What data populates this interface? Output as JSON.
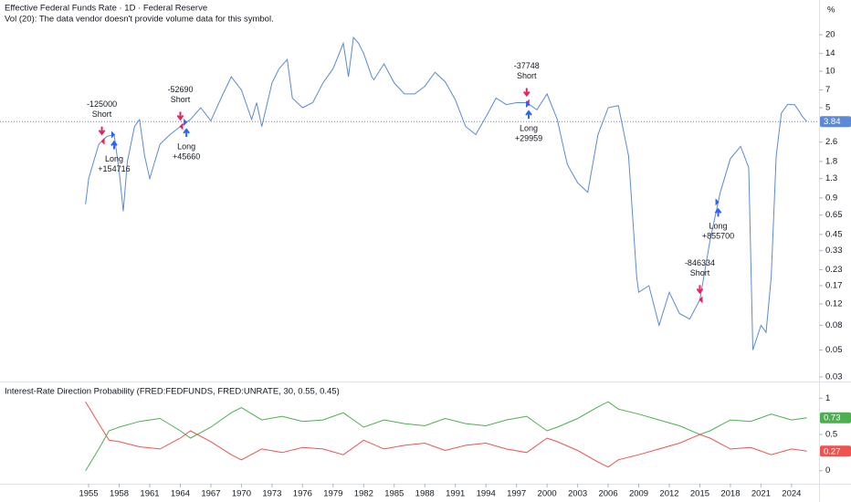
{
  "chart_data": [
    {
      "type": "line",
      "title": "Effective Federal Funds Rate · 1D · Federal Reserve",
      "subtitle": "Vol (20): The data vendor doesn't provide volume data for this symbol.",
      "y_unit": "%",
      "log_scale": true,
      "color": "#5b8ad6",
      "x": [
        1954.7,
        1955.0,
        1955.5,
        1956,
        1956.8,
        1957.5,
        1958.0,
        1958.4,
        1958.8,
        1959.5,
        1960,
        1960.5,
        1961,
        1961.5,
        1962,
        1963,
        1964,
        1965,
        1966,
        1967,
        1968,
        1969,
        1970,
        1971,
        1971.5,
        1972,
        1973,
        1973.7,
        1974.5,
        1975,
        1976,
        1977,
        1978,
        1979,
        1980,
        1980.5,
        1981,
        1981.5,
        1982,
        1982.8,
        1983,
        1984,
        1985,
        1986,
        1987,
        1988,
        1989,
        1990,
        1991,
        1992,
        1993,
        1994,
        1995,
        1996,
        1997,
        1998,
        1999,
        2000,
        2001,
        2001.8,
        2002,
        2003,
        2004,
        2005,
        2006,
        2007,
        2008,
        2008.8,
        2009,
        2010,
        2011,
        2012,
        2013,
        2014,
        2015,
        2016,
        2017,
        2018,
        2019,
        2019.8,
        2020.2,
        2021,
        2021.5,
        2022,
        2022.5,
        2023,
        2023.6,
        2024.3,
        2024.8,
        2025.0,
        2025.5
      ],
      "values": [
        0.8,
        1.3,
        1.8,
        2.5,
        2.9,
        3.0,
        1.5,
        0.7,
        1.8,
        3.5,
        4.0,
        2.0,
        1.3,
        1.8,
        2.5,
        3.0,
        3.5,
        4.0,
        5.0,
        3.9,
        6.0,
        9.0,
        7.0,
        4.0,
        5.5,
        3.5,
        8.0,
        10.5,
        12.5,
        6.0,
        5.0,
        5.5,
        8.0,
        10.5,
        17,
        9,
        19,
        17,
        14,
        9,
        8.5,
        11.5,
        8,
        6.5,
        6.5,
        7.5,
        9.8,
        8.2,
        5.8,
        3.5,
        3.0,
        4.2,
        6.0,
        5.3,
        5.5,
        5.5,
        4.8,
        6.5,
        4.0,
        2.0,
        1.7,
        1.2,
        1.0,
        3.0,
        5.0,
        5.2,
        2.0,
        0.2,
        0.15,
        0.17,
        0.08,
        0.15,
        0.1,
        0.09,
        0.13,
        0.4,
        1.0,
        1.9,
        2.4,
        1.6,
        0.05,
        0.08,
        0.07,
        0.2,
        2.0,
        4.5,
        5.3,
        5.3,
        4.6,
        4.3,
        3.84
      ],
      "xlim": [
        1946.3,
        2026.7
      ],
      "ylim": [
        0.0275,
        38.7
      ],
      "yticks": [
        20,
        14,
        10,
        7,
        5,
        2.6,
        1.8,
        1.3,
        0.9,
        0.65,
        0.45,
        0.33,
        0.23,
        0.17,
        0.12,
        0.08,
        0.05,
        0.03
      ],
      "annotations": [
        {
          "x": 1956.3,
          "side": "short",
          "amount": "-125000",
          "action": "Short"
        },
        {
          "x": 1957.5,
          "side": "long",
          "action": "Long",
          "amount": "+154716"
        },
        {
          "x": 1964.0,
          "side": "short",
          "amount": "-52690",
          "action": "Short"
        },
        {
          "x": 1964.6,
          "side": "long",
          "action": "Long",
          "amount": "+45660"
        },
        {
          "x": 1998.0,
          "side": "short",
          "amount": "-37748",
          "action": "Short"
        },
        {
          "x": 1998.2,
          "side": "long",
          "action": "Long",
          "amount": "+29959"
        },
        {
          "x": 2015.0,
          "side": "short",
          "amount": "-846334",
          "action": "Short"
        },
        {
          "x": 2016.8,
          "side": "long",
          "action": "Long",
          "amount": "+855700"
        }
      ]
    },
    {
      "type": "line",
      "title": "Interest-Rate Direction Probability (FRED:FEDFUNDS, FRED:UNRATE, 30, 0.55, 0.45)",
      "x": [
        1954.7,
        1956,
        1957,
        1958,
        1960,
        1962,
        1964,
        1965,
        1967,
        1969,
        1970,
        1972,
        1974,
        1976,
        1978,
        1980,
        1982,
        1984,
        1986,
        1988,
        1990,
        1992,
        1994,
        1996,
        1998,
        2000,
        2001,
        2003,
        2005,
        2006,
        2007,
        2009,
        2011,
        2013,
        2015,
        2016,
        2018,
        2020,
        2022,
        2024,
        2025.5
      ],
      "series": [
        {
          "color": "#4caf50",
          "values": [
            0.0,
            0.3,
            0.55,
            0.6,
            0.68,
            0.72,
            0.55,
            0.45,
            0.6,
            0.8,
            0.87,
            0.7,
            0.75,
            0.68,
            0.7,
            0.8,
            0.6,
            0.7,
            0.65,
            0.62,
            0.72,
            0.65,
            0.62,
            0.7,
            0.75,
            0.55,
            0.6,
            0.72,
            0.88,
            0.95,
            0.85,
            0.78,
            0.7,
            0.62,
            0.5,
            0.55,
            0.7,
            0.68,
            0.78,
            0.7,
            0.73
          ]
        },
        {
          "color": "#ef5350",
          "values": [
            0.95,
            0.65,
            0.42,
            0.4,
            0.33,
            0.3,
            0.45,
            0.55,
            0.4,
            0.22,
            0.15,
            0.3,
            0.25,
            0.32,
            0.3,
            0.22,
            0.42,
            0.3,
            0.35,
            0.38,
            0.28,
            0.35,
            0.38,
            0.3,
            0.25,
            0.45,
            0.4,
            0.28,
            0.12,
            0.05,
            0.15,
            0.22,
            0.3,
            0.38,
            0.5,
            0.45,
            0.3,
            0.32,
            0.22,
            0.3,
            0.27
          ]
        }
      ],
      "xlim": [
        1946.3,
        2026.7
      ],
      "ylim": [
        -0.18,
        1.23
      ],
      "yticks": [
        1,
        0.5,
        0
      ],
      "xticks": [
        1955,
        1958,
        1961,
        1964,
        1967,
        1970,
        1973,
        1976,
        1979,
        1982,
        1985,
        1988,
        1991,
        1994,
        1997,
        2000,
        2003,
        2006,
        2009,
        2012,
        2015,
        2018,
        2021,
        2024
      ]
    }
  ]
}
